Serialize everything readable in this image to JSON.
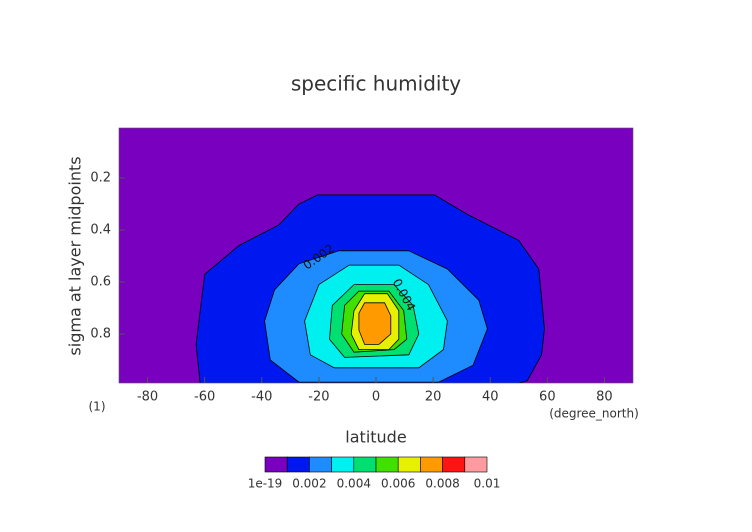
{
  "chart_data": {
    "type": "contour",
    "title": "specific humidity",
    "xlabel": "latitude",
    "ylabel": "sigma at layer midpoints",
    "x_unit": "(degree_north)",
    "y_unit": "(1)",
    "xlim": [
      -90,
      90
    ],
    "xticks": [
      -80,
      -60,
      -40,
      -20,
      0,
      20,
      40,
      60,
      80
    ],
    "ylim": [
      1,
      0
    ],
    "yticks": [
      0.2,
      0.4,
      0.6,
      0.8
    ],
    "contours": [
      {
        "level": 0.001,
        "lat": [
          -20.5,
          20.5,
          32,
          50,
          57,
          59,
          58,
          53,
          46,
          -61.5,
          -63,
          -60,
          -48,
          -34,
          -27
        ],
        "sigma": [
          0.265,
          0.265,
          0.34,
          0.44,
          0.55,
          0.78,
          0.88,
          0.98,
          1.0,
          1.0,
          0.84,
          0.57,
          0.46,
          0.38,
          0.3
        ]
      },
      {
        "level": 0.002,
        "lat": [
          -13,
          11.5,
          25,
          36,
          39,
          34,
          22,
          -27,
          -37,
          -39,
          -35.5,
          -27
        ],
        "sigma": [
          0.48,
          0.48,
          0.55,
          0.67,
          0.78,
          0.92,
          0.985,
          0.985,
          0.9,
          0.75,
          0.63,
          0.53
        ]
      },
      {
        "level": 0.003,
        "lat": [
          -9.4,
          8,
          18.4,
          25,
          23.6,
          15,
          -14.6,
          -23,
          -25,
          -20
        ],
        "sigma": [
          0.535,
          0.535,
          0.61,
          0.75,
          0.86,
          0.93,
          0.93,
          0.88,
          0.75,
          0.61
        ]
      },
      {
        "level": 0.004,
        "lat": [
          -7.7,
          6.3,
          13,
          15,
          11.5,
          -11,
          -16.3,
          -15.3
        ],
        "sigma": [
          0.61,
          0.61,
          0.69,
          0.8,
          0.88,
          0.89,
          0.82,
          0.69
        ]
      },
      {
        "level": 0.005,
        "lat": [
          -6,
          4.5,
          9.7,
          10.8,
          6.3,
          -7.7,
          -12,
          -11
        ],
        "sigma": [
          0.635,
          0.635,
          0.71,
          0.82,
          0.86,
          0.87,
          0.8,
          0.69
        ]
      },
      {
        "level": 0.006,
        "lat": [
          -4,
          4,
          8,
          8,
          4.5,
          -6,
          -8.7,
          -7.7
        ],
        "sigma": [
          0.645,
          0.645,
          0.71,
          0.82,
          0.86,
          0.86,
          0.8,
          0.71
        ]
      },
      {
        "level": 0.007,
        "lat": [
          -4,
          3,
          5.2,
          5.2,
          1,
          -4,
          -6,
          -6
        ],
        "sigma": [
          0.68,
          0.68,
          0.73,
          0.8,
          0.84,
          0.84,
          0.785,
          0.72
        ]
      }
    ],
    "colorbar": {
      "ticks": [
        {
          "value": 1e-19,
          "label": "1e-19"
        },
        0.002,
        0.004,
        0.006,
        0.008,
        0.01
      ],
      "colors": [
        "#7a00c0",
        "#0018f0",
        "#1e8cff",
        "#00f0f0",
        "#00e070",
        "#40e000",
        "#e6f000",
        "#ff9a00",
        "#ff1414",
        "#ff9aa0"
      ]
    }
  }
}
